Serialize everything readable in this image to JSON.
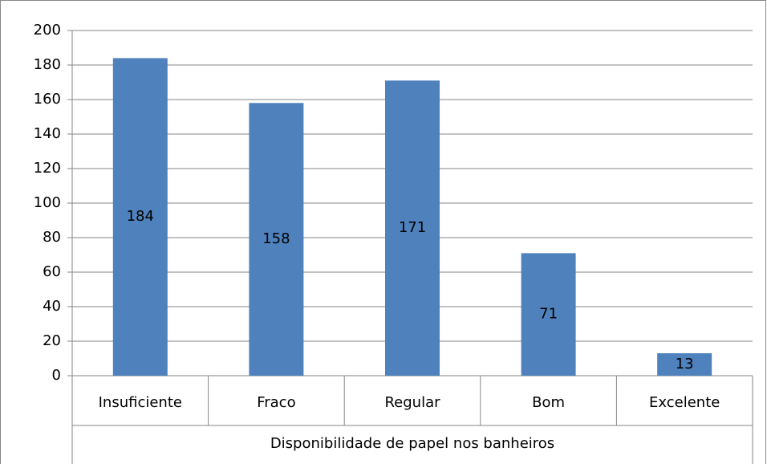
{
  "chart_data": {
    "type": "bar",
    "x_label": "Disponibilidade de papel nos banheiros",
    "categories": [
      "Insuficiente",
      "Fraco",
      "Regular",
      "Bom",
      "Excelente"
    ],
    "values": [
      184,
      158,
      171,
      71,
      13
    ],
    "color": "#4f81bd",
    "ylim": [
      0,
      200
    ],
    "yticks": [
      0,
      20,
      40,
      60,
      80,
      100,
      120,
      140,
      160,
      180,
      200
    ],
    "grid": true
  }
}
